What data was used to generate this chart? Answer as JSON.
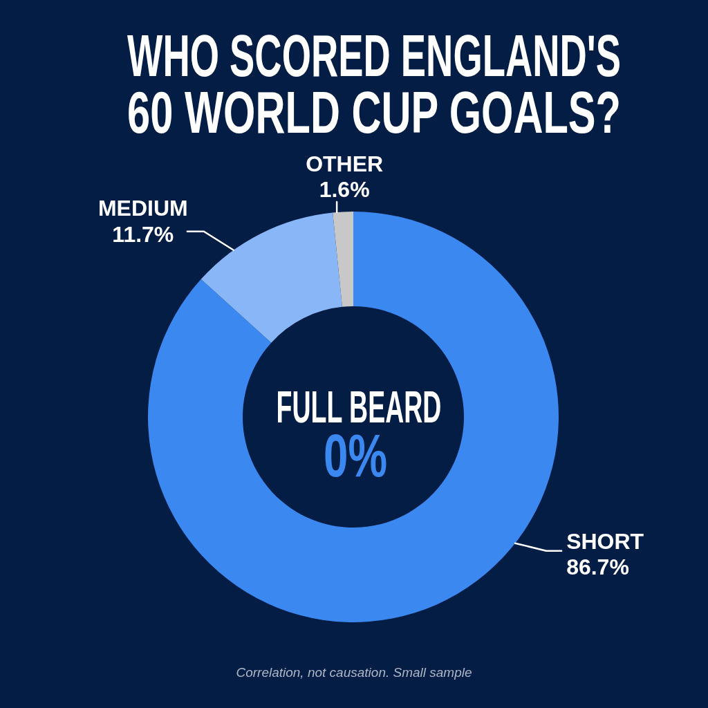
{
  "chart_data": {
    "type": "donut",
    "title": "WHO SCORED ENGLAND'S 60 WORLD CUP GOALS?",
    "categories": [
      "SHORT",
      "MEDIUM",
      "OTHER"
    ],
    "values": [
      86.7,
      11.7,
      1.6
    ],
    "value_labels": [
      "86.7%",
      "11.7%",
      "1.6%"
    ],
    "colors": [
      "#3b88f0",
      "#88b6f6",
      "#c8c8c8"
    ],
    "annotations": [
      "FULL BEARD",
      "0%",
      "Correlation, not causation. Small sample"
    ]
  }
}
